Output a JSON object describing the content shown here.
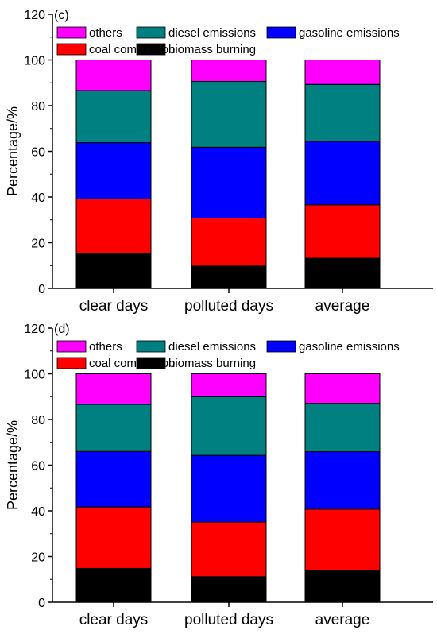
{
  "chart_data": [
    {
      "type": "bar",
      "stacked": true,
      "panel_label": "(c)",
      "ylabel": "Percentage/%",
      "xlabel": "",
      "ylim": [
        0,
        120
      ],
      "yticks": [
        0,
        20,
        40,
        60,
        80,
        100,
        120
      ],
      "categories": [
        "clear days",
        "polluted days",
        "average"
      ],
      "series": [
        {
          "name": "biomass burning",
          "color": "#000000",
          "values": [
            15.2,
            9.8,
            13.2
          ]
        },
        {
          "name": "coal combustion",
          "color": "#ff0000",
          "values": [
            24.0,
            21.0,
            23.4
          ]
        },
        {
          "name": "gasoline emissions",
          "color": "#0000ff",
          "values": [
            24.6,
            31.0,
            27.7
          ]
        },
        {
          "name": "diesel emissions",
          "color": "#008080",
          "values": [
            22.8,
            28.8,
            25.0
          ]
        },
        {
          "name": "others",
          "color": "#ff00ff",
          "values": [
            13.4,
            9.4,
            10.7
          ]
        }
      ],
      "legend_rows": [
        [
          "others",
          "diesel emissions",
          "gasoline emissions"
        ],
        [
          "coal combustion",
          "biomass burning"
        ]
      ],
      "legend_position": "top-left"
    },
    {
      "type": "bar",
      "stacked": true,
      "panel_label": "(d)",
      "ylabel": "Percentage/%",
      "xlabel": "",
      "ylim": [
        0,
        120
      ],
      "yticks": [
        0,
        20,
        40,
        60,
        80,
        100,
        120
      ],
      "categories": [
        "clear days",
        "polluted days",
        "average"
      ],
      "series": [
        {
          "name": "biomass burning",
          "color": "#000000",
          "values": [
            14.8,
            11.2,
            13.8
          ]
        },
        {
          "name": "coal combustion",
          "color": "#ff0000",
          "values": [
            26.9,
            23.9,
            26.9
          ]
        },
        {
          "name": "gasoline emissions",
          "color": "#0000ff",
          "values": [
            24.3,
            29.2,
            25.2
          ]
        },
        {
          "name": "diesel emissions",
          "color": "#008080",
          "values": [
            20.6,
            25.7,
            21.2
          ]
        },
        {
          "name": "others",
          "color": "#ff00ff",
          "values": [
            13.4,
            10.0,
            12.9
          ]
        }
      ],
      "legend_rows": [
        [
          "others",
          "diesel emissions",
          "gasoline emissions"
        ],
        [
          "coal combustion",
          "biomass burning"
        ]
      ],
      "legend_position": "top-left"
    }
  ]
}
